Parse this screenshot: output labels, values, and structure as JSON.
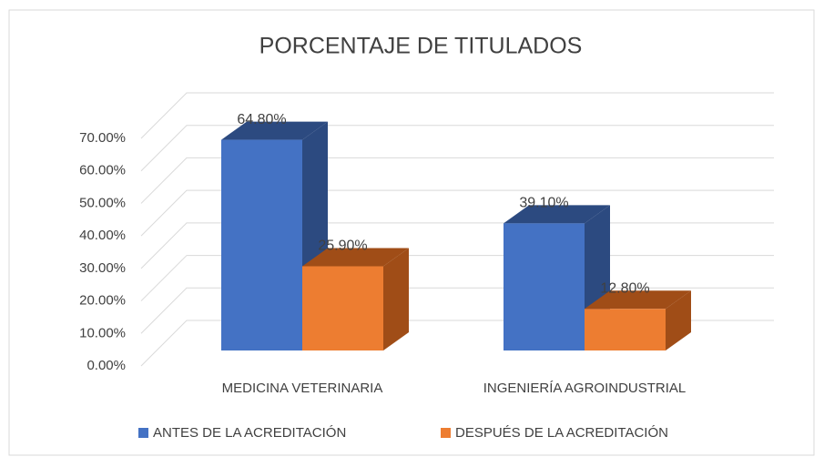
{
  "chart_data": {
    "type": "bar3d",
    "title": "PORCENTAJE DE TITULADOS",
    "categories": [
      "MEDICINA VETERINARIA",
      "INGENIERÍA AGROINDUSTRIAL"
    ],
    "series": [
      {
        "name": "ANTES DE LA ACREDITACIÓN",
        "color": "#4472c4",
        "side": "#2c4a80",
        "values": [
          64.8,
          39.1
        ],
        "value_labels": [
          "64.80%",
          "39.10%"
        ]
      },
      {
        "name": "DESPUÉS DE LA ACREDITACIÓN",
        "color": "#ed7d31",
        "side": "#a04d17",
        "values": [
          25.9,
          12.8
        ],
        "value_labels": [
          "25.90%",
          "12.80%"
        ]
      }
    ],
    "ylim": [
      0,
      70
    ],
    "yticks": [
      {
        "value": 0,
        "label": "0.00%"
      },
      {
        "value": 10,
        "label": "10.00%"
      },
      {
        "value": 20,
        "label": "20.00%"
      },
      {
        "value": 30,
        "label": "30.00%"
      },
      {
        "value": 40,
        "label": "40.00%"
      },
      {
        "value": 50,
        "label": "50.00%"
      },
      {
        "value": 60,
        "label": "60.00%"
      },
      {
        "value": 70,
        "label": "70.00%"
      }
    ],
    "grid": true,
    "legend": "bottom"
  }
}
